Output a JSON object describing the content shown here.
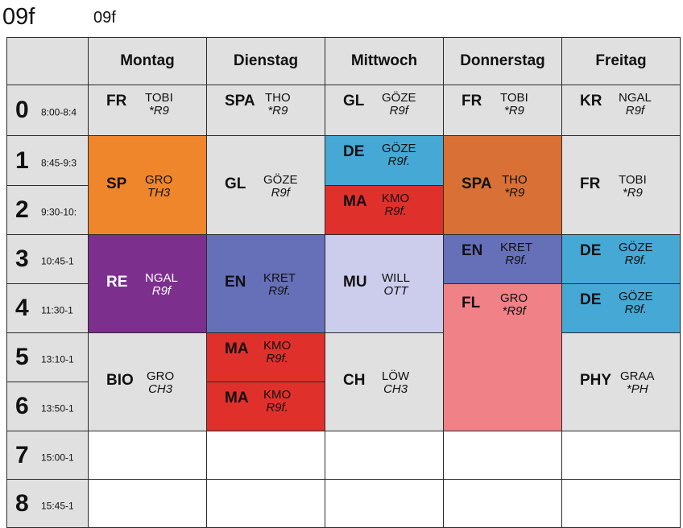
{
  "class_label": "09f",
  "class_label_small": "09f",
  "days": [
    "Montag",
    "Dienstag",
    "Mittwoch",
    "Donnerstag",
    "Freitag"
  ],
  "periods": [
    {
      "num": "0",
      "time": "8:00-8:4"
    },
    {
      "num": "1",
      "time": "8:45-9:3"
    },
    {
      "num": "2",
      "time": "9:30-10:"
    },
    {
      "num": "3",
      "time": "10:45-1"
    },
    {
      "num": "4",
      "time": "11:30-1"
    },
    {
      "num": "5",
      "time": "13:10-1"
    },
    {
      "num": "6",
      "time": "13:50-1"
    },
    {
      "num": "7",
      "time": "15:00-1"
    },
    {
      "num": "8",
      "time": "15:45-1"
    }
  ],
  "colors": {
    "gray": "#e0e0e0",
    "orange": "#f0862c",
    "lightblue": "#46a8d4",
    "red": "#e0302c",
    "darkorange": "#d97137",
    "purple": "#7d2f8e",
    "slate": "#6670b8",
    "lavender": "#ccccec",
    "pink": "#f08187",
    "white": "#ffffff"
  },
  "lessons": [
    {
      "day": 0,
      "start": 0,
      "span": 1,
      "subject": "FR",
      "teacher": "TOBI",
      "room": "*R9",
      "color": "gray",
      "text": "dark",
      "layout": "top"
    },
    {
      "day": 1,
      "start": 0,
      "span": 1,
      "subject": "SPA",
      "teacher": "THO",
      "room": "*R9",
      "color": "gray",
      "text": "dark",
      "layout": "top"
    },
    {
      "day": 2,
      "start": 0,
      "span": 1,
      "subject": "GL",
      "teacher": "GÖZE",
      "room": "R9f",
      "color": "gray",
      "text": "dark",
      "layout": "top"
    },
    {
      "day": 3,
      "start": 0,
      "span": 1,
      "subject": "FR",
      "teacher": "TOBI",
      "room": "*R9",
      "color": "gray",
      "text": "dark",
      "layout": "top"
    },
    {
      "day": 4,
      "start": 0,
      "span": 1,
      "subject": "KR",
      "teacher": "NGAL",
      "room": "R9f",
      "color": "gray",
      "text": "dark",
      "layout": "top"
    },
    {
      "day": 0,
      "start": 1,
      "span": 2,
      "subject": "SP",
      "teacher": "GRO",
      "room": "TH3",
      "color": "orange",
      "text": "dark",
      "layout": "mid"
    },
    {
      "day": 1,
      "start": 1,
      "span": 2,
      "subject": "GL",
      "teacher": "GÖZE",
      "room": "R9f",
      "color": "gray",
      "text": "dark",
      "layout": "mid"
    },
    {
      "day": 2,
      "start": 1,
      "span": 1,
      "subject": "DE",
      "teacher": "GÖZE",
      "room": "R9f.",
      "color": "lightblue",
      "text": "dark",
      "layout": "top"
    },
    {
      "day": 2,
      "start": 2,
      "span": 1,
      "subject": "MA",
      "teacher": "KMO",
      "room": "R9f.",
      "color": "red",
      "text": "dark",
      "layout": "top"
    },
    {
      "day": 3,
      "start": 1,
      "span": 2,
      "subject": "SPA",
      "teacher": "THO",
      "room": "*R9",
      "color": "darkorange",
      "text": "dark",
      "layout": "mid"
    },
    {
      "day": 4,
      "start": 1,
      "span": 2,
      "subject": "FR",
      "teacher": "TOBI",
      "room": "*R9",
      "color": "gray",
      "text": "dark",
      "layout": "mid"
    },
    {
      "day": 0,
      "start": 3,
      "span": 2,
      "subject": "RE",
      "teacher": "NGAL",
      "room": "R9f",
      "color": "purple",
      "text": "light",
      "layout": "mid"
    },
    {
      "day": 1,
      "start": 3,
      "span": 2,
      "subject": "EN",
      "teacher": "KRET",
      "room": "R9f.",
      "color": "slate",
      "text": "dark",
      "layout": "mid"
    },
    {
      "day": 2,
      "start": 3,
      "span": 2,
      "subject": "MU",
      "teacher": "WILL",
      "room": "OTT",
      "color": "lavender",
      "text": "dark",
      "layout": "mid"
    },
    {
      "day": 3,
      "start": 3,
      "span": 1,
      "subject": "EN",
      "teacher": "KRET",
      "room": "R9f.",
      "color": "slate",
      "text": "dark",
      "layout": "top"
    },
    {
      "day": 4,
      "start": 3,
      "span": 1,
      "subject": "DE",
      "teacher": "GÖZE",
      "room": "R9f.",
      "color": "lightblue",
      "text": "dark",
      "layout": "top"
    },
    {
      "day": 4,
      "start": 4,
      "span": 1,
      "subject": "DE",
      "teacher": "GÖZE",
      "room": "R9f.",
      "color": "lightblue",
      "text": "dark",
      "layout": "top"
    },
    {
      "day": 3,
      "start": 4,
      "span": 3,
      "subject": "FL",
      "teacher": "GRO",
      "room": "*R9f",
      "color": "pink",
      "text": "dark",
      "layout": "upper"
    },
    {
      "day": 0,
      "start": 5,
      "span": 2,
      "subject": "BIO",
      "teacher": "GRO",
      "room": "CH3",
      "color": "gray",
      "text": "dark",
      "layout": "mid"
    },
    {
      "day": 1,
      "start": 5,
      "span": 1,
      "subject": "MA",
      "teacher": "KMO",
      "room": "R9f.",
      "color": "red",
      "text": "dark",
      "layout": "top"
    },
    {
      "day": 1,
      "start": 6,
      "span": 1,
      "subject": "MA",
      "teacher": "KMO",
      "room": "R9f.",
      "color": "red",
      "text": "dark",
      "layout": "top"
    },
    {
      "day": 2,
      "start": 5,
      "span": 2,
      "subject": "CH",
      "teacher": "LÖW",
      "room": "CH3",
      "color": "gray",
      "text": "dark",
      "layout": "mid"
    },
    {
      "day": 4,
      "start": 5,
      "span": 2,
      "subject": "PHY",
      "teacher": "GRAA",
      "room": "*PH",
      "color": "gray",
      "text": "dark",
      "layout": "mid"
    },
    {
      "day": 0,
      "start": 7,
      "span": 1,
      "subject": "",
      "teacher": "",
      "room": "",
      "color": "white",
      "text": "dark",
      "layout": "top"
    },
    {
      "day": 1,
      "start": 7,
      "span": 1,
      "subject": "",
      "teacher": "",
      "room": "",
      "color": "white",
      "text": "dark",
      "layout": "top"
    },
    {
      "day": 2,
      "start": 7,
      "span": 1,
      "subject": "",
      "teacher": "",
      "room": "",
      "color": "white",
      "text": "dark",
      "layout": "top"
    },
    {
      "day": 3,
      "start": 7,
      "span": 1,
      "subject": "",
      "teacher": "",
      "room": "",
      "color": "white",
      "text": "dark",
      "layout": "top"
    },
    {
      "day": 4,
      "start": 7,
      "span": 1,
      "subject": "",
      "teacher": "",
      "room": "",
      "color": "white",
      "text": "dark",
      "layout": "top"
    },
    {
      "day": 0,
      "start": 8,
      "span": 1,
      "subject": "",
      "teacher": "",
      "room": "",
      "color": "white",
      "text": "dark",
      "layout": "top"
    },
    {
      "day": 1,
      "start": 8,
      "span": 1,
      "subject": "",
      "teacher": "",
      "room": "",
      "color": "white",
      "text": "dark",
      "layout": "top"
    },
    {
      "day": 2,
      "start": 8,
      "span": 1,
      "subject": "",
      "teacher": "",
      "room": "",
      "color": "white",
      "text": "dark",
      "layout": "top"
    },
    {
      "day": 3,
      "start": 8,
      "span": 1,
      "subject": "",
      "teacher": "",
      "room": "",
      "color": "white",
      "text": "dark",
      "layout": "top"
    },
    {
      "day": 4,
      "start": 8,
      "span": 1,
      "subject": "",
      "teacher": "",
      "room": "",
      "color": "white",
      "text": "dark",
      "layout": "top"
    }
  ]
}
